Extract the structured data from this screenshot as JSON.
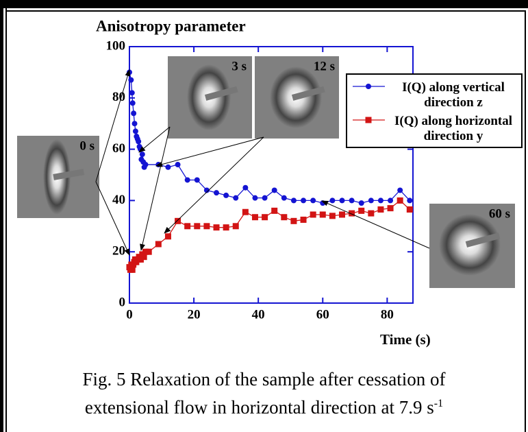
{
  "chart_data": {
    "type": "line",
    "y_label": "Anisotropy parameter",
    "x_label": "Time (s)",
    "xlim": [
      0,
      88
    ],
    "xticks": [
      0,
      20,
      40,
      60,
      80
    ],
    "ylim": [
      0,
      100
    ],
    "yticks": [
      0,
      20,
      40,
      60,
      80,
      100
    ],
    "series": [
      {
        "name": "I(Q) along vertical direction z",
        "color": "#1414d2",
        "marker": "circle",
        "x": [
          0,
          0.5,
          0.8,
          1,
          1.3,
          1.6,
          1.9,
          2.2,
          2.5,
          2.8,
          3.1,
          3.4,
          3.7,
          4,
          4.3,
          4.6,
          5,
          9,
          12,
          15,
          18,
          21,
          24,
          27,
          30,
          33,
          36,
          39,
          42,
          45,
          48,
          51,
          54,
          57,
          60,
          63,
          66,
          69,
          72,
          75,
          78,
          81,
          84,
          87
        ],
        "values": [
          90,
          87,
          82,
          78,
          74,
          70,
          67,
          65,
          64,
          63,
          61,
          60,
          56,
          58,
          55,
          53,
          54,
          54,
          53,
          54,
          48,
          48,
          44,
          43,
          42,
          41,
          45,
          41,
          41,
          44,
          41,
          40,
          40,
          40,
          39,
          40,
          40,
          40,
          39,
          40,
          40,
          40,
          44,
          40
        ]
      },
      {
        "name": "I(Q) along horizontal direction y",
        "color": "#d21414",
        "marker": "square",
        "x": [
          0,
          0.3,
          0.6,
          0.9,
          1.2,
          1.5,
          1.8,
          2.1,
          2.4,
          2.7,
          3,
          3.5,
          4,
          4.5,
          5,
          6,
          9,
          12,
          15,
          18,
          21,
          24,
          27,
          30,
          33,
          36,
          39,
          42,
          45,
          48,
          51,
          54,
          57,
          60,
          63,
          66,
          69,
          72,
          75,
          78,
          81,
          84,
          87
        ],
        "values": [
          14,
          13,
          15,
          13,
          15,
          16,
          17,
          16,
          17,
          17,
          18,
          17,
          19,
          18,
          20,
          20,
          23,
          26,
          32,
          30,
          30,
          30,
          29.5,
          29.5,
          30,
          35.5,
          33.5,
          33.5,
          36,
          33.5,
          32,
          32.5,
          34.5,
          34.5,
          34,
          34.5,
          35,
          36,
          35,
          36.5,
          37,
          40,
          36.5
        ]
      }
    ],
    "annotations": [
      "0 s",
      "3 s",
      "12 s",
      "60 s"
    ],
    "caption": [
      "Fig. 5 Relaxation of the sample after cessation of",
      "extensional flow in horizontal direction at 7.9 s"
    ],
    "caption_superscript": "-1"
  }
}
